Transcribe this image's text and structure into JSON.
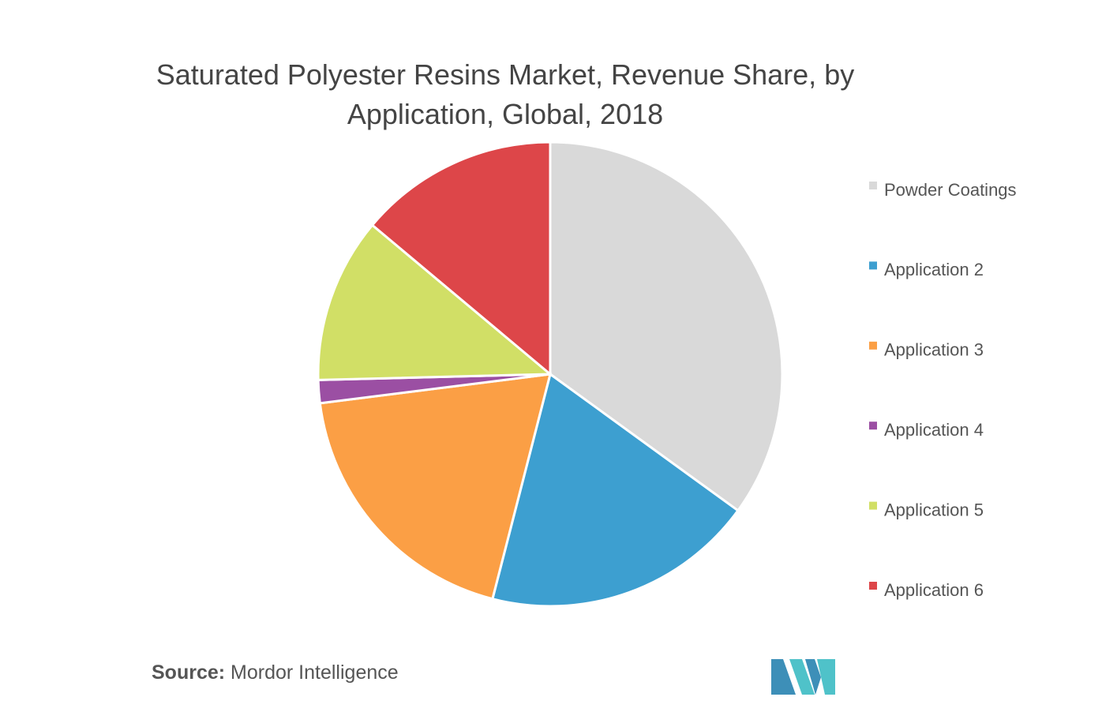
{
  "chart_data": {
    "type": "pie",
    "title": "Saturated Polyester Resins Market, Revenue Share, by Application, Global, 2018",
    "categories": [
      "Powder Coatings",
      "Application 2",
      "Application 3",
      "Application 4",
      "Application 5",
      "Application 6"
    ],
    "values": [
      35,
      19,
      19,
      1.6,
      11.5,
      13.9
    ],
    "colors": [
      "#d9d9d9",
      "#3d9fd0",
      "#fb9f45",
      "#9b4fa3",
      "#d1df66",
      "#dd4649"
    ],
    "legend": "right"
  },
  "source": {
    "label": "Source:",
    "text": "Mordor Intelligence"
  }
}
